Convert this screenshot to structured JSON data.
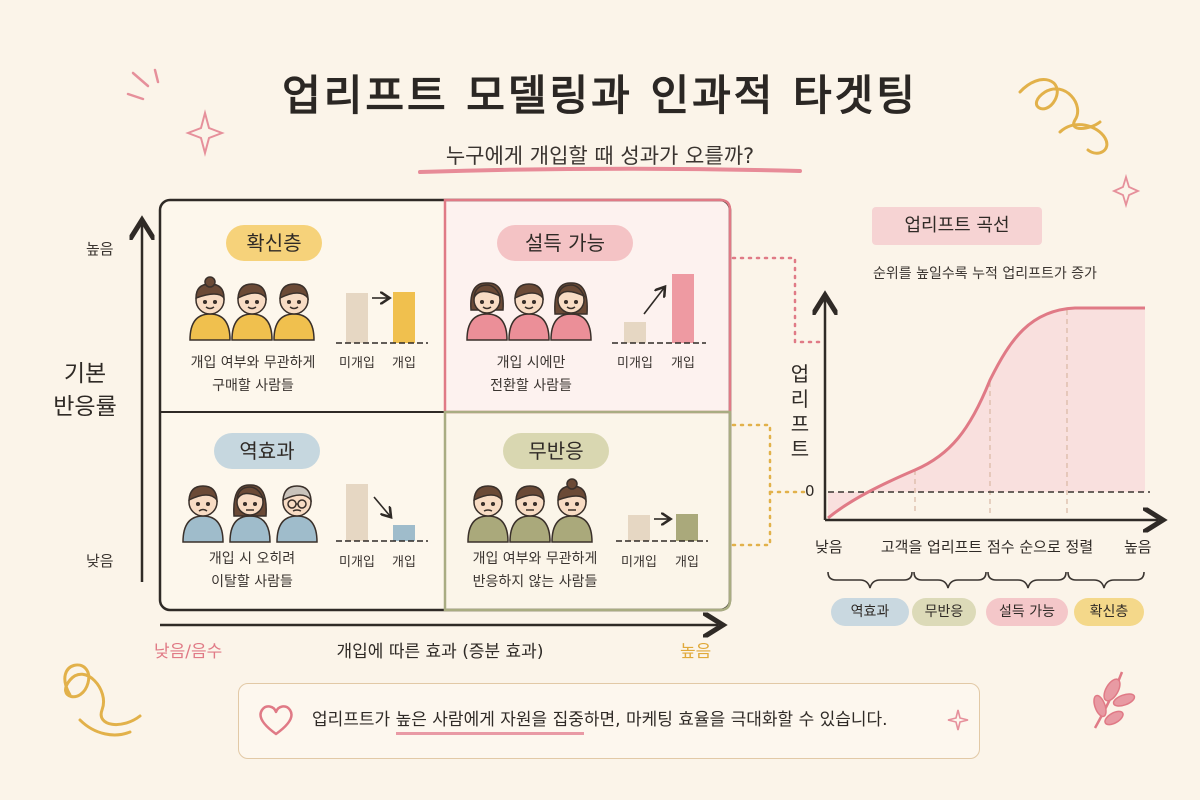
{
  "title": "업리프트 모델링과 인과적 타겟팅",
  "subtitle": "누구에게 개입할 때 성과가 오를까?",
  "matrix": {
    "y_axis": {
      "title_line1": "기본",
      "title_line2": "반응률",
      "high": "높음",
      "low": "낮음"
    },
    "x_axis": {
      "title": "개입에 따른 효과 (증분 효과)",
      "low": "낮음/음수",
      "high": "높음"
    },
    "quadrants": {
      "sure_things": {
        "label": "확신층",
        "desc_line1": "개입 여부와 무관하게",
        "desc_line2": "구매할 사람들",
        "bar_untreated": "미개입",
        "bar_treated": "개입",
        "color": "#f2c95b"
      },
      "persuadables": {
        "label": "설득 가능",
        "desc_line1": "개입 시에만",
        "desc_line2": "전환할 사람들",
        "bar_untreated": "미개입",
        "bar_treated": "개입",
        "color": "#ee9aa2"
      },
      "sleeping_dogs": {
        "label": "역효과",
        "desc_line1": "개입 시 오히려",
        "desc_line2": "이탈할 사람들",
        "bar_untreated": "미개입",
        "bar_treated": "개입",
        "color": "#9fb9c8"
      },
      "lost_causes": {
        "label": "무반응",
        "desc_line1": "개입 여부와 무관하게",
        "desc_line2": "반응하지 않는 사람들",
        "bar_untreated": "미개입",
        "bar_treated": "개입",
        "color": "#b8b48a"
      }
    }
  },
  "uplift_curve": {
    "title": "업리프트 곡선",
    "subtitle": "순위를 높일수록 누적 업리프트가 증가",
    "y_label": "업리프트",
    "zero_label": "0",
    "x_low": "낮음",
    "x_title": "고객을 업리프트 점수 순으로 정렬",
    "x_high": "높음",
    "segments": [
      "역효과",
      "무반응",
      "설득 가능",
      "확신층"
    ],
    "segment_colors": [
      "#c9d8e0",
      "#dcdab8",
      "#f4c7c9",
      "#f4d88a"
    ]
  },
  "footer": {
    "text_before": "업리프트가 ",
    "highlight": "높은 사람에게 자원을 집중",
    "text_after": "하면, 마케팅 효율을 극대화할 수 있습니다."
  },
  "colors": {
    "accent_red": "#e07a86",
    "accent_gold": "#e0a93a",
    "curve": "#e07a86",
    "curve_fill": "#f8dcdc"
  }
}
